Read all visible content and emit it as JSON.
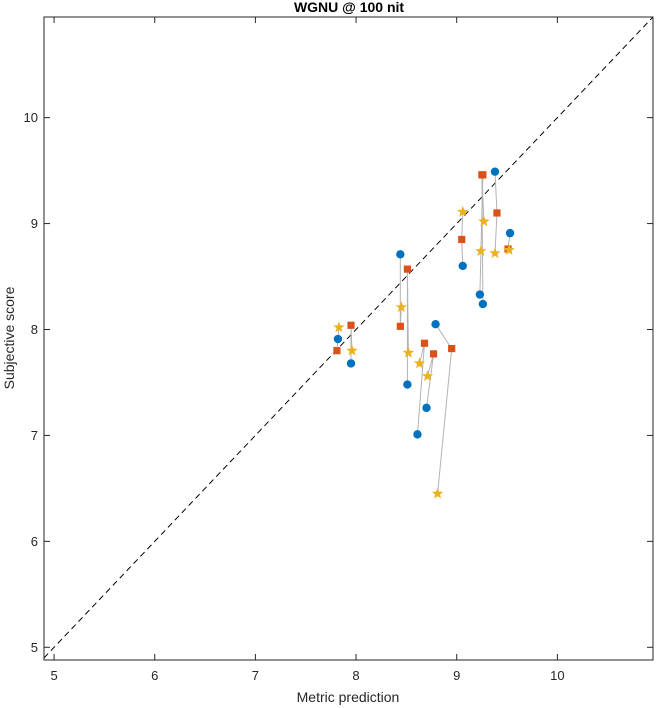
{
  "chart_data": {
    "type": "scatter",
    "title": "WGNU @ 100 nit",
    "xlabel": "Metric prediction",
    "ylabel": "Subjective score",
    "xlim": [
      4.9,
      10.95
    ],
    "ylim": [
      4.88,
      10.95
    ],
    "xticks": [
      5,
      6,
      7,
      8,
      9,
      10
    ],
    "yticks": [
      5,
      6,
      7,
      8,
      9,
      10
    ],
    "grid": false,
    "box": true,
    "reference_line": {
      "style": "dashed",
      "color": "#000000",
      "x": [
        4.9,
        10.95
      ],
      "y": [
        4.9,
        10.95
      ]
    },
    "connector_color": "#b3b3b3",
    "series": [
      {
        "marker": "circle",
        "color": "#0072bd",
        "points": [
          [
            7.82,
            7.91
          ],
          [
            7.95,
            7.68
          ],
          [
            8.44,
            8.71
          ],
          [
            8.51,
            7.48
          ],
          [
            8.61,
            7.01
          ],
          [
            8.7,
            7.26
          ],
          [
            8.79,
            8.05
          ],
          [
            9.06,
            8.6
          ],
          [
            9.23,
            8.33
          ],
          [
            9.26,
            8.24
          ],
          [
            9.38,
            9.49
          ],
          [
            9.53,
            8.91
          ]
        ]
      },
      {
        "marker": "square",
        "color": "#d95319",
        "points": [
          [
            7.81,
            7.8
          ],
          [
            7.95,
            8.04
          ],
          [
            8.44,
            8.03
          ],
          [
            8.51,
            8.57
          ],
          [
            8.68,
            7.87
          ],
          [
            8.77,
            7.77
          ],
          [
            8.95,
            7.82
          ],
          [
            9.05,
            8.85
          ],
          [
            9.26,
            9.46
          ],
          [
            9.25,
            9.46
          ],
          [
            9.4,
            9.1
          ],
          [
            9.51,
            8.76
          ]
        ]
      },
      {
        "marker": "star",
        "color": "#edb120",
        "points": [
          [
            7.83,
            8.02
          ],
          [
            7.96,
            7.8
          ],
          [
            8.45,
            8.21
          ],
          [
            8.52,
            7.78
          ],
          [
            8.63,
            7.68
          ],
          [
            8.71,
            7.56
          ],
          [
            8.81,
            6.45
          ],
          [
            9.06,
            9.11
          ],
          [
            9.24,
            8.74
          ],
          [
            9.27,
            9.02
          ],
          [
            9.38,
            8.72
          ],
          [
            9.52,
            8.75
          ]
        ]
      }
    ]
  }
}
